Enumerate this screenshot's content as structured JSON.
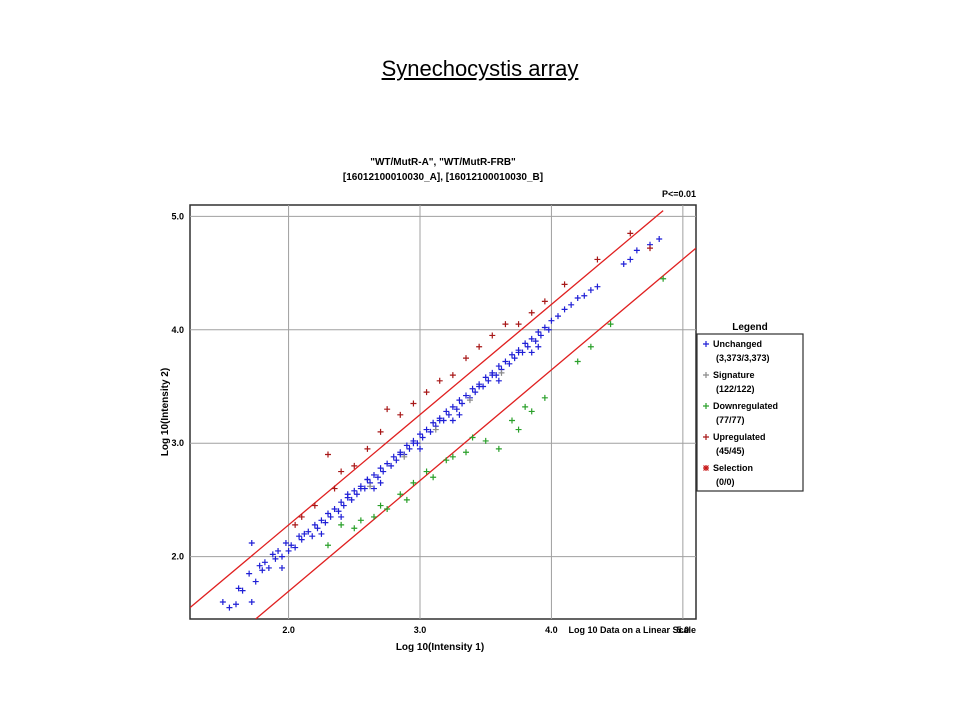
{
  "page_title": "Synechocystis array",
  "colors": {
    "unchanged": "#1f1fd6",
    "signature": "#8a8a8a",
    "downregulated": "#2aa02a",
    "upregulated": "#a81818",
    "selection": "#c81818",
    "threshold": "#e02020",
    "grid": "#a0a0a0"
  },
  "chart_data": {
    "type": "scatter",
    "title_line1": "\"WT/MutR-A\", \"WT/MutR-FRB\"",
    "title_line2": "[16012100010030_A], [16012100010030_B]",
    "annotation": "P<=0.01",
    "xlabel": "Log 10(Intensity 1)",
    "ylabel": "Log 10(Intensity 2)",
    "scale_note": "Log 10 Data on a Linear Scale",
    "xlim": [
      1.25,
      5.1
    ],
    "ylim": [
      1.45,
      5.1
    ],
    "x_ticks": [
      "2.0",
      "3.0",
      "4.0",
      "5.0"
    ],
    "y_ticks": [
      "2.0",
      "3.0",
      "4.0",
      "5.0"
    ],
    "grid": true,
    "legend_position": "right",
    "legend": {
      "title": "Legend",
      "items": [
        {
          "name": "Unchanged",
          "count": "(3,373/3,373)",
          "color_key": "unchanged",
          "marker": "+"
        },
        {
          "name": "Signature",
          "count": "(122/122)",
          "color_key": "signature",
          "marker": "+"
        },
        {
          "name": "Downregulated",
          "count": "(77/77)",
          "color_key": "downregulated",
          "marker": "+"
        },
        {
          "name": "Upregulated",
          "count": "(45/45)",
          "color_key": "upregulated",
          "marker": "+"
        },
        {
          "name": "Selection",
          "count": "(0/0)",
          "color_key": "selection",
          "marker": "*"
        }
      ]
    },
    "threshold_lines": [
      {
        "name": "upper",
        "x": [
          1.25,
          4.85
        ],
        "y": [
          1.55,
          5.05
        ]
      },
      {
        "name": "lower",
        "x": [
          1.75,
          5.1
        ],
        "y": [
          1.45,
          4.72
        ]
      }
    ],
    "series": [
      {
        "name": "Unchanged",
        "color_key": "unchanged",
        "x": [
          1.5,
          1.55,
          1.6,
          1.62,
          1.65,
          1.7,
          1.72,
          1.75,
          1.78,
          1.8,
          1.82,
          1.85,
          1.88,
          1.9,
          1.92,
          1.95,
          1.98,
          2.0,
          2.02,
          2.05,
          2.08,
          2.1,
          2.12,
          2.15,
          2.18,
          2.2,
          2.22,
          2.25,
          2.28,
          2.3,
          2.32,
          2.35,
          2.38,
          2.4,
          2.42,
          2.45,
          2.48,
          2.5,
          2.52,
          2.55,
          2.58,
          2.6,
          2.62,
          2.65,
          2.68,
          2.7,
          2.72,
          2.75,
          2.78,
          2.8,
          2.82,
          2.85,
          2.88,
          2.9,
          2.92,
          2.95,
          2.98,
          3.0,
          3.02,
          3.05,
          3.08,
          3.1,
          3.12,
          3.15,
          3.18,
          3.2,
          3.22,
          3.25,
          3.28,
          3.3,
          3.32,
          3.35,
          3.38,
          3.4,
          3.42,
          3.45,
          3.48,
          3.5,
          3.52,
          3.55,
          3.58,
          3.6,
          3.62,
          3.65,
          3.68,
          3.7,
          3.72,
          3.75,
          3.78,
          3.8,
          3.82,
          3.85,
          3.88,
          3.9,
          3.92,
          3.95,
          3.98,
          4.0,
          4.05,
          4.1,
          4.15,
          4.2,
          4.25,
          4.3,
          4.35,
          4.55,
          4.6,
          4.65,
          4.75,
          4.82,
          2.4,
          2.55,
          2.7,
          2.85,
          3.0,
          3.15,
          3.3,
          3.45,
          3.6,
          3.75,
          3.9,
          2.45,
          2.65,
          2.95,
          3.25,
          3.55,
          3.85,
          1.72,
          1.95,
          2.25,
          2.6
        ],
        "y": [
          1.6,
          1.55,
          1.58,
          1.72,
          1.7,
          1.85,
          1.6,
          1.78,
          1.92,
          1.88,
          1.95,
          1.9,
          2.02,
          1.98,
          2.05,
          2.0,
          2.12,
          2.05,
          2.1,
          2.08,
          2.18,
          2.15,
          2.2,
          2.22,
          2.18,
          2.28,
          2.25,
          2.32,
          2.3,
          2.38,
          2.35,
          2.42,
          2.4,
          2.48,
          2.45,
          2.52,
          2.5,
          2.58,
          2.55,
          2.62,
          2.6,
          2.68,
          2.65,
          2.72,
          2.7,
          2.78,
          2.75,
          2.82,
          2.8,
          2.88,
          2.85,
          2.92,
          2.9,
          2.98,
          2.95,
          3.02,
          3.0,
          3.08,
          3.05,
          3.12,
          3.1,
          3.18,
          3.15,
          3.22,
          3.2,
          3.28,
          3.25,
          3.32,
          3.3,
          3.38,
          3.35,
          3.42,
          3.4,
          3.48,
          3.45,
          3.52,
          3.5,
          3.58,
          3.55,
          3.62,
          3.6,
          3.68,
          3.65,
          3.72,
          3.7,
          3.78,
          3.75,
          3.82,
          3.8,
          3.88,
          3.85,
          3.92,
          3.9,
          3.98,
          3.95,
          4.02,
          4.0,
          4.08,
          4.12,
          4.18,
          4.22,
          4.28,
          4.3,
          4.35,
          4.38,
          4.58,
          4.62,
          4.7,
          4.75,
          4.8,
          2.35,
          2.6,
          2.65,
          2.9,
          2.95,
          3.2,
          3.25,
          3.5,
          3.55,
          3.8,
          3.85,
          2.55,
          2.6,
          3.0,
          3.2,
          3.6,
          3.8,
          2.12,
          1.9,
          2.2,
          2.68
        ]
      },
      {
        "name": "Downregulated",
        "color_key": "downregulated",
        "x": [
          2.3,
          2.5,
          2.55,
          2.65,
          2.7,
          2.85,
          2.9,
          2.95,
          3.05,
          3.1,
          3.2,
          3.35,
          3.4,
          3.5,
          3.7,
          3.8,
          3.85,
          3.95,
          4.2,
          4.3,
          4.45,
          4.85,
          3.6,
          3.75,
          2.4,
          2.75,
          3.25
        ],
        "y": [
          2.1,
          2.25,
          2.32,
          2.35,
          2.45,
          2.55,
          2.5,
          2.65,
          2.75,
          2.7,
          2.85,
          2.92,
          3.05,
          3.02,
          3.2,
          3.32,
          3.28,
          3.4,
          3.72,
          3.85,
          4.05,
          4.45,
          2.95,
          3.12,
          2.28,
          2.42,
          2.88
        ]
      },
      {
        "name": "Upregulated",
        "color_key": "upregulated",
        "x": [
          2.05,
          2.1,
          2.2,
          2.3,
          2.35,
          2.4,
          2.5,
          2.6,
          2.7,
          2.75,
          2.85,
          2.95,
          3.05,
          3.15,
          3.25,
          3.35,
          3.45,
          3.55,
          3.65,
          3.75,
          3.85,
          3.95,
          4.1,
          4.35,
          4.6,
          4.75
        ],
        "y": [
          2.28,
          2.35,
          2.45,
          2.9,
          2.6,
          2.75,
          2.8,
          2.95,
          3.1,
          3.3,
          3.25,
          3.35,
          3.45,
          3.55,
          3.6,
          3.75,
          3.85,
          3.95,
          4.05,
          4.05,
          4.15,
          4.25,
          4.4,
          4.62,
          4.85,
          4.72
        ]
      },
      {
        "name": "Signature",
        "color_key": "signature",
        "x": [
          2.62,
          2.88,
          3.12,
          3.38,
          3.62
        ],
        "y": [
          2.62,
          2.88,
          3.12,
          3.38,
          3.62
        ]
      }
    ]
  }
}
